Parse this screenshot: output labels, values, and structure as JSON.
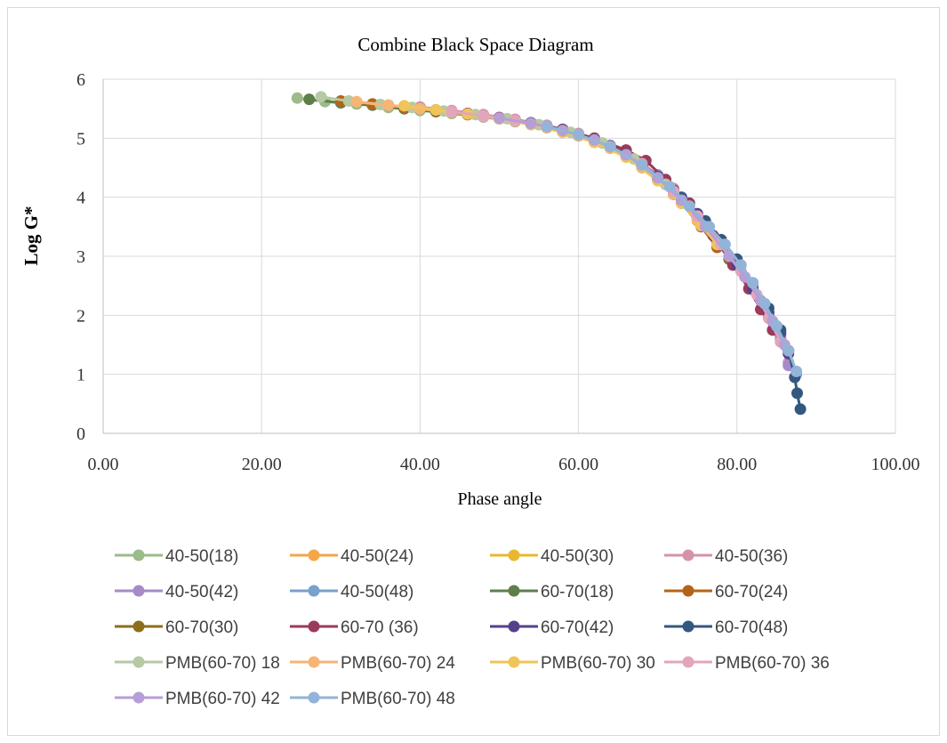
{
  "chart_data": {
    "type": "scatter",
    "title": "Combine Black Space Diagram",
    "xlabel": "Phase angle",
    "ylabel": "Log G*",
    "xlim": [
      0,
      100
    ],
    "ylim": [
      0,
      6
    ],
    "xticks": [
      "0.00",
      "20.00",
      "40.00",
      "60.00",
      "80.00",
      "100.00"
    ],
    "yticks": [
      "0",
      "1",
      "2",
      "3",
      "4",
      "5",
      "6"
    ],
    "grid": true,
    "legend_position": "bottom",
    "series": [
      {
        "name": "40-50(18)",
        "color": "#9bbb8a",
        "x": [
          24.5,
          28,
          32,
          36,
          40,
          44,
          48,
          52,
          56,
          60,
          64,
          68,
          72
        ],
        "y": [
          5.68,
          5.62,
          5.58,
          5.52,
          5.47,
          5.42,
          5.36,
          5.28,
          5.18,
          5.05,
          4.85,
          4.55,
          4.05
        ]
      },
      {
        "name": "40-50(24)",
        "color": "#f4a64a",
        "x": [
          30,
          34,
          38,
          42,
          46,
          50,
          54,
          58,
          62,
          66,
          70,
          73
        ],
        "y": [
          5.62,
          5.57,
          5.52,
          5.47,
          5.41,
          5.34,
          5.25,
          5.14,
          4.98,
          4.72,
          4.3,
          3.9
        ]
      },
      {
        "name": "40-50(30)",
        "color": "#e8b92e",
        "x": [
          34,
          38,
          42,
          46,
          50,
          54,
          58,
          62,
          66,
          70,
          73,
          75
        ],
        "y": [
          5.58,
          5.53,
          5.47,
          5.41,
          5.34,
          5.25,
          5.13,
          4.97,
          4.72,
          4.32,
          3.92,
          3.6
        ]
      },
      {
        "name": "40-50(36)",
        "color": "#d494a8",
        "x": [
          40,
          44,
          48,
          52,
          56,
          60,
          64,
          68,
          72,
          75,
          78,
          80,
          82,
          84,
          85.5,
          86.5
        ],
        "y": [
          5.53,
          5.47,
          5.4,
          5.32,
          5.22,
          5.08,
          4.88,
          4.58,
          4.15,
          3.72,
          3.25,
          2.85,
          2.45,
          2.05,
          1.65,
          1.2
        ]
      },
      {
        "name": "40-50(42)",
        "color": "#a58bc8",
        "x": [
          46,
          50,
          54,
          58,
          62,
          66,
          70,
          73,
          76,
          78,
          80,
          82,
          84,
          85.5,
          86.5
        ],
        "y": [
          5.42,
          5.35,
          5.26,
          5.15,
          4.99,
          4.75,
          4.38,
          4.0,
          3.55,
          3.2,
          2.85,
          2.45,
          2.0,
          1.6,
          1.15
        ]
      },
      {
        "name": "40-50(48)",
        "color": "#7aa0cc",
        "x": [
          52,
          56,
          60,
          64,
          68,
          71,
          74,
          76,
          78,
          80,
          82,
          83.5,
          85,
          86.5,
          87.5
        ],
        "y": [
          5.3,
          5.2,
          5.06,
          4.86,
          4.55,
          4.22,
          3.85,
          3.55,
          3.25,
          2.9,
          2.5,
          2.15,
          1.8,
          1.4,
          1.0
        ]
      },
      {
        "name": "60-70(18)",
        "color": "#5e7f4a",
        "x": [
          26,
          30,
          34,
          38,
          42,
          46,
          50,
          54,
          58,
          62,
          66,
          70
        ],
        "y": [
          5.66,
          5.6,
          5.56,
          5.5,
          5.45,
          5.4,
          5.33,
          5.24,
          5.13,
          4.98,
          4.74,
          4.35
        ]
      },
      {
        "name": "60-70(24)",
        "color": "#b3641a",
        "x": [
          30,
          34,
          38,
          42,
          46,
          50,
          54,
          58,
          62,
          66,
          70,
          73,
          75.5,
          77.5
        ],
        "y": [
          5.63,
          5.58,
          5.52,
          5.46,
          5.4,
          5.33,
          5.24,
          5.12,
          4.96,
          4.7,
          4.3,
          3.9,
          3.5,
          3.15
        ]
      },
      {
        "name": "60-70(30)",
        "color": "#8c6f1a",
        "x": [
          36,
          40,
          44,
          48,
          52,
          56,
          60,
          64,
          68,
          72,
          75,
          77.5,
          79
        ],
        "y": [
          5.56,
          5.5,
          5.44,
          5.37,
          5.29,
          5.18,
          5.04,
          4.84,
          4.52,
          4.05,
          3.65,
          3.25,
          2.95
        ]
      },
      {
        "name": "60-70 (36)",
        "color": "#9b3a5a",
        "x": [
          42,
          46,
          50,
          54,
          58,
          62,
          66,
          68.5,
          71,
          74,
          77,
          79.5,
          81.5,
          83,
          84.5
        ],
        "y": [
          5.48,
          5.42,
          5.35,
          5.26,
          5.15,
          5.0,
          4.8,
          4.62,
          4.3,
          3.9,
          3.35,
          2.85,
          2.45,
          2.1,
          1.75
        ]
      },
      {
        "name": "60-70(42)",
        "color": "#55418a",
        "x": [
          48,
          52,
          56,
          60,
          64,
          68,
          72,
          75,
          78,
          80,
          82,
          84,
          85.5,
          86.5
        ],
        "y": [
          5.38,
          5.3,
          5.2,
          5.06,
          4.87,
          4.57,
          4.12,
          3.72,
          3.22,
          2.85,
          2.45,
          2.05,
          1.7,
          1.35
        ]
      },
      {
        "name": "60-70(48)",
        "color": "#34577f",
        "x": [
          54,
          58,
          62,
          66,
          70,
          73,
          76,
          78,
          80,
          82,
          84,
          85.5,
          86.5,
          87.3,
          87.6,
          88
        ],
        "y": [
          5.26,
          5.14,
          4.98,
          4.73,
          4.35,
          4.0,
          3.6,
          3.28,
          2.95,
          2.55,
          2.12,
          1.75,
          1.4,
          0.95,
          0.68,
          0.41
        ]
      },
      {
        "name": "PMB(60-70) 18",
        "color": "#b5c9a3",
        "x": [
          27.5,
          31,
          35,
          39,
          43,
          47,
          51,
          55,
          59,
          63,
          67,
          71
        ],
        "y": [
          5.7,
          5.63,
          5.57,
          5.52,
          5.46,
          5.4,
          5.33,
          5.23,
          5.1,
          4.92,
          4.65,
          4.22
        ]
      },
      {
        "name": "PMB(60-70) 24",
        "color": "#f6b575",
        "x": [
          32,
          36,
          40,
          44,
          48,
          52,
          56,
          60,
          64,
          68,
          72,
          75
        ],
        "y": [
          5.62,
          5.56,
          5.5,
          5.44,
          5.37,
          5.29,
          5.18,
          5.04,
          4.83,
          4.5,
          4.05,
          3.62
        ]
      },
      {
        "name": "PMB(60-70) 30",
        "color": "#efc55a",
        "x": [
          38,
          42,
          46,
          50,
          54,
          58,
          62,
          66,
          70,
          73,
          75.5,
          77.5
        ],
        "y": [
          5.55,
          5.48,
          5.41,
          5.33,
          5.23,
          5.1,
          4.93,
          4.68,
          4.28,
          3.9,
          3.52,
          3.2
        ]
      },
      {
        "name": "PMB(60-70) 36",
        "color": "#e2a6bc",
        "x": [
          44,
          48,
          52,
          56,
          60,
          64,
          68,
          72,
          75,
          78,
          80.5,
          82.5,
          84,
          85.5
        ],
        "y": [
          5.45,
          5.38,
          5.3,
          5.2,
          5.06,
          4.86,
          4.57,
          4.1,
          3.68,
          3.2,
          2.75,
          2.35,
          1.95,
          1.55
        ]
      },
      {
        "name": "PMB(60-70) 42",
        "color": "#b89ed6",
        "x": [
          50,
          54,
          58,
          62,
          66,
          70,
          73,
          76,
          79,
          81,
          83,
          84.5,
          86
        ],
        "y": [
          5.34,
          5.25,
          5.13,
          4.97,
          4.72,
          4.33,
          3.95,
          3.5,
          3.0,
          2.65,
          2.25,
          1.9,
          1.5
        ]
      },
      {
        "name": "PMB(60-70) 48",
        "color": "#93b4d8",
        "x": [
          56,
          60,
          64,
          68,
          71.5,
          74,
          76.5,
          78.5,
          80.5,
          82,
          83.5,
          85,
          86.5,
          87.5
        ],
        "y": [
          5.2,
          5.06,
          4.86,
          4.55,
          4.18,
          3.85,
          3.5,
          3.2,
          2.85,
          2.55,
          2.2,
          1.82,
          1.4,
          1.05
        ]
      }
    ]
  }
}
